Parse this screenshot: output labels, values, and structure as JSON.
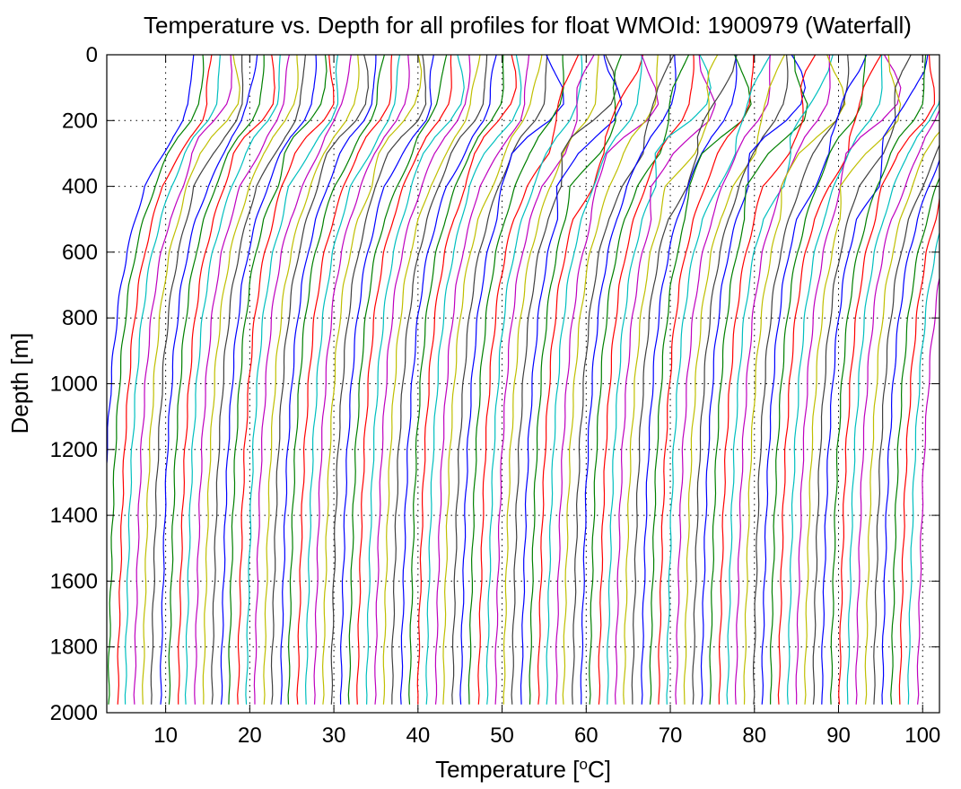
{
  "chart_data": {
    "type": "line",
    "title": "Temperature vs. Depth for all profiles for float WMOId: 1900979 (Waterfall)",
    "xlabel": "Temperature [",
    "xlabel_sup": "o",
    "xlabel_suffix": "C]",
    "ylabel": "Depth [m]",
    "xlim": [
      3,
      102
    ],
    "ylim": [
      2000,
      0
    ],
    "y_reversed": true,
    "grid": true,
    "grid_style": "dotted",
    "x_ticks": [
      10,
      20,
      30,
      40,
      50,
      60,
      70,
      80,
      90,
      100
    ],
    "y_ticks": [
      0,
      200,
      400,
      600,
      800,
      1000,
      1200,
      1400,
      1600,
      1800,
      2000
    ],
    "x_tick_labels": [
      "10",
      "20",
      "30",
      "40",
      "50",
      "60",
      "70",
      "80",
      "90",
      "100"
    ],
    "y_tick_labels": [
      "0",
      "200",
      "400",
      "600",
      "800",
      "1000",
      "1200",
      "1400",
      "1600",
      "1800",
      "2000"
    ],
    "series_colors": [
      "#0000ff",
      "#008000",
      "#ff0000",
      "#00bfbf",
      "#bf00bf",
      "#bfbf00",
      "#404040"
    ],
    "profile_count": 96,
    "profile_offsets": [
      2.2,
      3.2,
      4.3,
      5.2,
      6.3,
      7.3,
      8.3,
      9.4,
      10.4,
      11.5,
      12.4,
      13.5,
      14.5,
      15.5,
      16.6,
      17.5,
      18.6,
      19.6,
      20.6,
      21.7,
      22.6,
      23.7,
      24.6,
      25.7,
      26.7,
      27.7,
      28.7,
      29.7,
      30.8,
      31.8,
      32.8,
      33.9,
      34.9,
      35.9,
      36.9,
      38.0,
      39.0,
      40.0,
      41.0,
      42.1,
      43.0,
      44.1,
      45.1,
      46.1,
      47.2,
      48.2,
      49.2,
      50.2,
      51.2,
      52.3,
      53.3,
      54.3,
      55.3,
      56.4,
      57.3,
      58.4,
      59.4,
      60.4,
      61.5,
      62.5,
      63.5,
      64.5,
      65.5,
      66.6,
      67.6,
      68.6,
      69.6,
      70.7,
      71.7,
      72.7,
      73.7,
      74.7,
      75.8,
      76.8,
      77.8,
      78.8,
      79.9,
      80.9,
      81.9,
      82.9,
      84.0,
      85.0,
      86.0,
      87.0,
      88.0,
      89.1,
      90.1,
      91.1,
      92.1,
      93.2,
      94.2,
      95.2,
      96.3,
      97.3,
      98.3,
      99.4
    ],
    "profile_template": {
      "depth": [
        0,
        50,
        100,
        150,
        200,
        250,
        300,
        400,
        500,
        600,
        700,
        800,
        900,
        1000,
        1200,
        1400,
        1600,
        1800,
        1975
      ],
      "temperature": [
        14.0,
        14.0,
        13.9,
        13.6,
        12.6,
        11.0,
        9.9,
        8.3,
        7.0,
        6.0,
        5.3,
        4.8,
        4.4,
        4.1,
        3.6,
        3.3,
        3.1,
        2.9,
        2.8
      ]
    }
  }
}
